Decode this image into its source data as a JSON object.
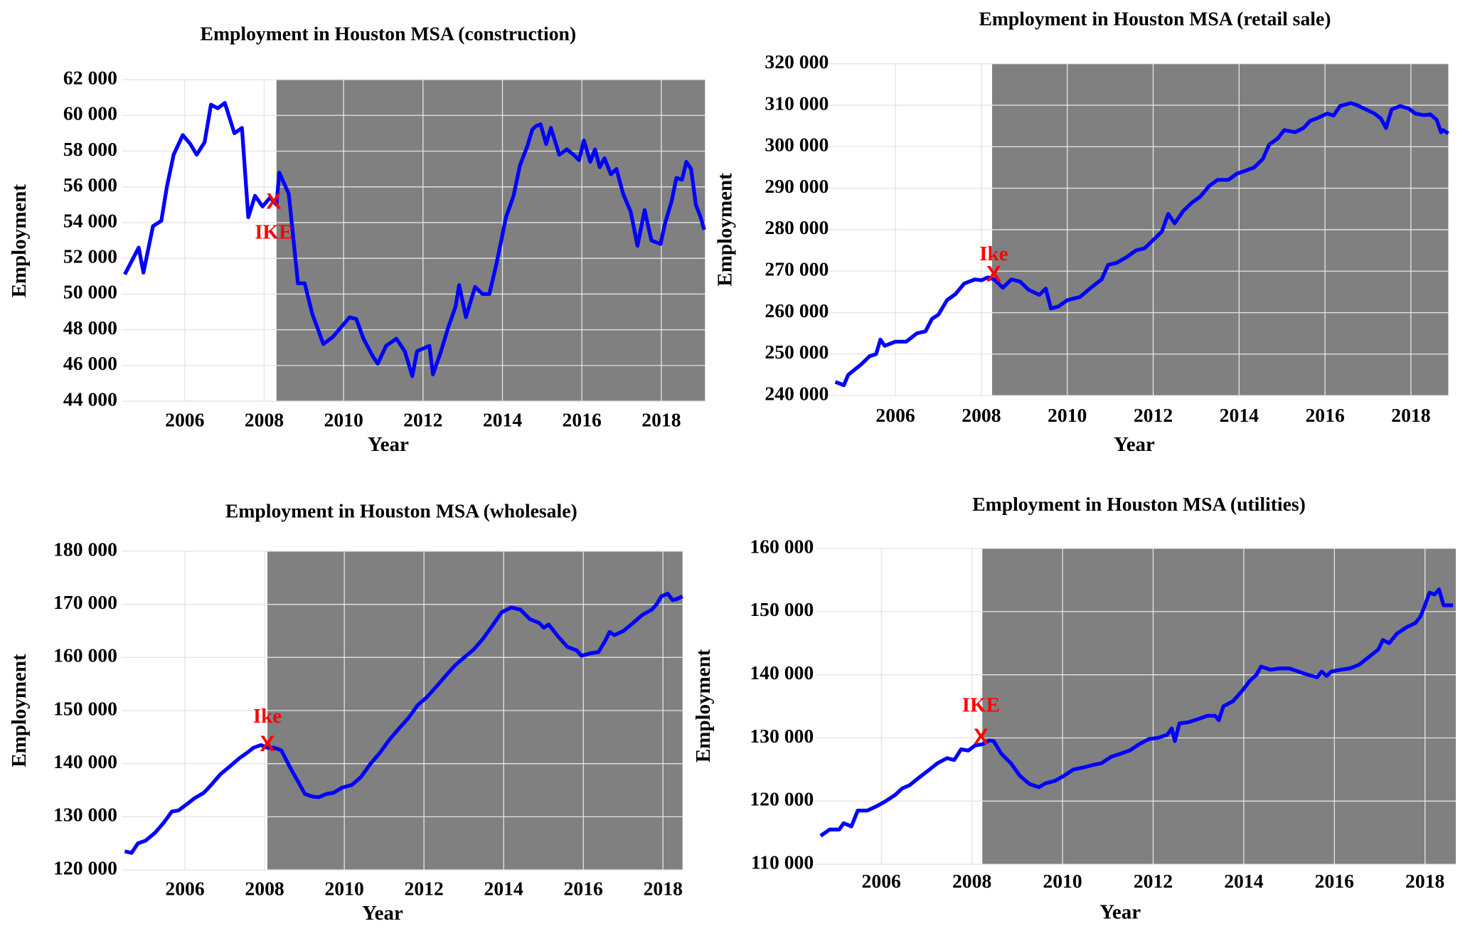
{
  "chart_data": [
    {
      "type": "line",
      "title": "Employment in Houston MSA  (construction)",
      "x_label": "Year",
      "y_label": "Employment",
      "color": "#0000ff",
      "grid": true,
      "shade_color": "#808080",
      "shaded_xrange": [
        2008.31,
        2019.1
      ],
      "xlim": [
        2004.42,
        2019.1
      ],
      "xticks": [
        2006,
        2008,
        2010,
        2012,
        2014,
        2016,
        2018
      ],
      "ylim": [
        44000,
        62000
      ],
      "yticks": [
        {
          "value": 44000,
          "label": "44 000"
        },
        {
          "value": 46000,
          "label": "46 000"
        },
        {
          "value": 48000,
          "label": "48 000"
        },
        {
          "value": 50000,
          "label": "50 000"
        },
        {
          "value": 52000,
          "label": "52 000"
        },
        {
          "value": 54000,
          "label": "54 000"
        },
        {
          "value": 56000,
          "label": "56 000"
        },
        {
          "value": 58000,
          "label": "58 000"
        },
        {
          "value": 60000,
          "label": "60 000"
        },
        {
          "value": 62000,
          "label": "62 000"
        }
      ],
      "annotation": {
        "text": "IKE",
        "marker": "X",
        "color": "#ff0000",
        "x": 2008.24,
        "y": 55100
      },
      "x": [
        2004.49,
        2004.84,
        2004.96,
        2005.2,
        2005.41,
        2005.55,
        2005.72,
        2005.95,
        2006.14,
        2006.3,
        2006.5,
        2006.66,
        2006.83,
        2007.01,
        2007.25,
        2007.44,
        2007.6,
        2007.77,
        2007.96,
        2008.15,
        2008.31,
        2008.38,
        2008.62,
        2008.85,
        2009.02,
        2009.21,
        2009.49,
        2009.73,
        2009.96,
        2010.15,
        2010.32,
        2010.5,
        2010.74,
        2010.86,
        2011.07,
        2011.33,
        2011.54,
        2011.73,
        2011.85,
        2012.16,
        2012.25,
        2012.44,
        2012.63,
        2012.82,
        2012.91,
        2013.08,
        2013.31,
        2013.5,
        2013.67,
        2013.85,
        2014.09,
        2014.28,
        2014.44,
        2014.63,
        2014.75,
        2014.84,
        2014.96,
        2015.1,
        2015.22,
        2015.43,
        2015.62,
        2015.79,
        2015.93,
        2016.05,
        2016.21,
        2016.33,
        2016.45,
        2016.57,
        2016.73,
        2016.87,
        2017.04,
        2017.23,
        2017.4,
        2017.58,
        2017.75,
        2017.98,
        2018.1,
        2018.26,
        2018.38,
        2018.52,
        2018.63,
        2018.75,
        2018.87,
        2018.99,
        2019.08
      ],
      "values": [
        51100,
        52600,
        51200,
        53800,
        54100,
        56000,
        57800,
        58900,
        58400,
        57800,
        58500,
        60600,
        60400,
        60700,
        59000,
        59300,
        54300,
        55500,
        54900,
        55400,
        55000,
        56800,
        55600,
        50600,
        50600,
        48900,
        47200,
        47600,
        48200,
        48700,
        48600,
        47500,
        46500,
        46100,
        47100,
        47500,
        46800,
        45400,
        46800,
        47100,
        45500,
        46700,
        48100,
        49300,
        50500,
        48700,
        50400,
        50000,
        50000,
        51700,
        54300,
        55500,
        57200,
        58300,
        59200,
        59400,
        59500,
        58400,
        59300,
        57800,
        58100,
        57800,
        57500,
        58600,
        57400,
        58100,
        57100,
        57600,
        56700,
        57000,
        55600,
        54600,
        52700,
        54700,
        53000,
        52800,
        54000,
        55200,
        56500,
        56400,
        57400,
        57000,
        55000,
        54300,
        53600
      ]
    },
    {
      "type": "line",
      "title": "Employment in Houston MSA  (retail sale)",
      "x_label": "Year",
      "y_label": "Employment",
      "color": "#0000ff",
      "grid": true,
      "shade_color": "#808080",
      "shaded_xrange": [
        2008.25,
        2018.87
      ],
      "xlim": [
        2004.36,
        2018.87
      ],
      "xticks": [
        2006,
        2008,
        2010,
        2012,
        2014,
        2016,
        2018
      ],
      "ylim": [
        240000,
        320000
      ],
      "yticks": [
        {
          "value": 240000,
          "label": "240 000"
        },
        {
          "value": 250000,
          "label": "250 000"
        },
        {
          "value": 260000,
          "label": "260 000"
        },
        {
          "value": 270000,
          "label": "270 000"
        },
        {
          "value": 280000,
          "label": "280 000"
        },
        {
          "value": 290000,
          "label": "290 000"
        },
        {
          "value": 300000,
          "label": "300 000"
        },
        {
          "value": 310000,
          "label": "310 000"
        },
        {
          "value": 320000,
          "label": "320 000"
        }
      ],
      "annotation": {
        "text": "Ike",
        "marker": "X",
        "color": "#ff0000",
        "x": 2008.29,
        "y": 269000
      },
      "x": [
        2004.6,
        2004.8,
        2004.9,
        2005.2,
        2005.4,
        2005.55,
        2005.65,
        2005.75,
        2006.0,
        2006.25,
        2006.5,
        2006.7,
        2006.85,
        2007.0,
        2007.2,
        2007.4,
        2007.6,
        2007.85,
        2008.0,
        2008.15,
        2008.3,
        2008.5,
        2008.7,
        2008.9,
        2009.1,
        2009.35,
        2009.5,
        2009.62,
        2009.8,
        2010.0,
        2010.3,
        2010.55,
        2010.8,
        2010.95,
        2011.15,
        2011.4,
        2011.6,
        2011.8,
        2012.0,
        2012.2,
        2012.35,
        2012.5,
        2012.7,
        2012.9,
        2013.1,
        2013.3,
        2013.5,
        2013.75,
        2013.95,
        2014.15,
        2014.35,
        2014.55,
        2014.7,
        2014.9,
        2015.05,
        2015.3,
        2015.5,
        2015.65,
        2015.85,
        2016.05,
        2016.2,
        2016.35,
        2016.6,
        2016.75,
        2016.95,
        2017.15,
        2017.3,
        2017.42,
        2017.55,
        2017.75,
        2017.95,
        2018.1,
        2018.3,
        2018.45,
        2018.6,
        2018.7,
        2018.75,
        2018.87
      ],
      "values": [
        243300,
        242500,
        245000,
        247500,
        249500,
        250000,
        253500,
        252000,
        253000,
        253000,
        255000,
        255500,
        258500,
        259500,
        263000,
        264500,
        267000,
        268000,
        267800,
        268500,
        268000,
        266000,
        268000,
        267500,
        265500,
        264300,
        265800,
        261000,
        261500,
        263000,
        263800,
        266000,
        268000,
        271500,
        272000,
        273500,
        275000,
        275500,
        277500,
        279500,
        283800,
        281500,
        284500,
        286500,
        288000,
        290500,
        292000,
        292000,
        293500,
        294200,
        295000,
        297000,
        300500,
        302000,
        304000,
        303500,
        304500,
        306200,
        307000,
        308000,
        307500,
        309800,
        310500,
        310000,
        309000,
        308000,
        306800,
        304500,
        309000,
        309800,
        309200,
        308000,
        307600,
        307800,
        306500,
        303500,
        304000,
        303200
      ]
    },
    {
      "type": "line",
      "title": "Employment in Houston MSA (wholesale)",
      "x_label": "Year",
      "y_label": "Employment",
      "color": "#0000ff",
      "grid": true,
      "shade_color": "#808080",
      "shaded_xrange": [
        2008.07,
        2018.49
      ],
      "xlim": [
        2004.42,
        2018.49
      ],
      "xticks": [
        2006,
        2008,
        2010,
        2012,
        2014,
        2016,
        2018
      ],
      "ylim": [
        120000,
        180000
      ],
      "yticks": [
        {
          "value": 120000,
          "label": "120 000"
        },
        {
          "value": 130000,
          "label": "130 000"
        },
        {
          "value": 140000,
          "label": "140 000"
        },
        {
          "value": 150000,
          "label": "150 000"
        },
        {
          "value": 160000,
          "label": "160 000"
        },
        {
          "value": 170000,
          "label": "170 000"
        },
        {
          "value": 180000,
          "label": "180 000"
        }
      ],
      "annotation": {
        "text": "Ike",
        "marker": "X",
        "color": "#ff0000",
        "x": 2008.07,
        "y": 143500
      },
      "x": [
        2004.49,
        2004.66,
        2004.82,
        2005.01,
        2005.25,
        2005.48,
        2005.67,
        2005.84,
        2006.07,
        2006.24,
        2006.47,
        2006.66,
        2006.89,
        2007.13,
        2007.36,
        2007.55,
        2007.72,
        2007.91,
        2008.07,
        2008.24,
        2008.42,
        2008.66,
        2008.85,
        2009.01,
        2009.2,
        2009.36,
        2009.55,
        2009.72,
        2009.95,
        2010.19,
        2010.42,
        2010.66,
        2010.89,
        2011.13,
        2011.36,
        2011.6,
        2011.84,
        2012.07,
        2012.31,
        2012.54,
        2012.78,
        2013.01,
        2013.25,
        2013.48,
        2013.72,
        2013.95,
        2014.19,
        2014.42,
        2014.66,
        2014.89,
        2015.01,
        2015.13,
        2015.36,
        2015.6,
        2015.84,
        2015.95,
        2016.19,
        2016.38,
        2016.54,
        2016.66,
        2016.78,
        2017.01,
        2017.25,
        2017.48,
        2017.72,
        2017.84,
        2017.96,
        2018.12,
        2018.24,
        2018.35,
        2018.49
      ],
      "values": [
        123500,
        123200,
        125000,
        125500,
        127000,
        129000,
        131000,
        131200,
        132500,
        133500,
        134500,
        136000,
        138000,
        139500,
        141000,
        142000,
        143000,
        143500,
        143000,
        143000,
        142500,
        139000,
        136500,
        134300,
        133800,
        133700,
        134300,
        134500,
        135500,
        136000,
        137500,
        140000,
        142000,
        144500,
        146500,
        148500,
        151000,
        152500,
        154500,
        156500,
        158500,
        160000,
        161500,
        163500,
        166000,
        168500,
        169400,
        169000,
        167200,
        166500,
        165600,
        166200,
        164000,
        162000,
        161300,
        160300,
        160800,
        161000,
        163000,
        164800,
        164200,
        165000,
        166500,
        168000,
        169000,
        170000,
        171500,
        172000,
        170800,
        171000,
        171500
      ]
    },
    {
      "type": "line",
      "title": "Employment in Houston MSA  (utilities)",
      "x_label": "Year",
      "y_label": "Employment",
      "color": "#0000ff",
      "grid": true,
      "shade_color": "#808080",
      "shaded_xrange": [
        2008.23,
        2018.68
      ],
      "xlim": [
        2004.55,
        2018.68
      ],
      "xticks": [
        2006,
        2008,
        2010,
        2012,
        2014,
        2016,
        2018
      ],
      "ylim": [
        110000,
        160000
      ],
      "yticks": [
        {
          "value": 110000,
          "label": "110 000"
        },
        {
          "value": 120000,
          "label": "120 000"
        },
        {
          "value": 130000,
          "label": "130 000"
        },
        {
          "value": 140000,
          "label": "140 000"
        },
        {
          "value": 150000,
          "label": "150 000"
        },
        {
          "value": 160000,
          "label": "160 000"
        }
      ],
      "annotation": {
        "text": "IKE",
        "marker": "X",
        "color": "#ff0000",
        "x": 2008.2,
        "y": 130000
      },
      "x": [
        2004.66,
        2004.86,
        2005.07,
        2005.17,
        2005.34,
        2005.48,
        2005.69,
        2005.9,
        2006.1,
        2006.31,
        2006.46,
        2006.62,
        2006.83,
        2007.03,
        2007.24,
        2007.45,
        2007.61,
        2007.76,
        2007.92,
        2008.07,
        2008.23,
        2008.38,
        2008.48,
        2008.65,
        2008.86,
        2009.06,
        2009.27,
        2009.48,
        2009.62,
        2009.83,
        2010.03,
        2010.24,
        2010.45,
        2010.66,
        2010.86,
        2011.07,
        2011.28,
        2011.48,
        2011.69,
        2011.9,
        2012.1,
        2012.31,
        2012.41,
        2012.48,
        2012.58,
        2012.79,
        2013.0,
        2013.2,
        2013.37,
        2013.45,
        2013.55,
        2013.76,
        2013.97,
        2014.13,
        2014.28,
        2014.38,
        2014.59,
        2014.79,
        2015.0,
        2015.21,
        2015.41,
        2015.62,
        2015.72,
        2015.83,
        2015.93,
        2016.14,
        2016.34,
        2016.55,
        2016.76,
        2016.97,
        2017.07,
        2017.21,
        2017.38,
        2017.59,
        2017.79,
        2017.9,
        2018.0,
        2018.1,
        2018.21,
        2018.31,
        2018.41,
        2018.62
      ],
      "values": [
        114500,
        115500,
        115500,
        116500,
        116000,
        118500,
        118500,
        119200,
        120000,
        121000,
        122000,
        122500,
        123700,
        124800,
        126000,
        126800,
        126500,
        128200,
        128000,
        128800,
        129000,
        129600,
        129500,
        127500,
        126000,
        124000,
        122700,
        122200,
        122800,
        123200,
        124000,
        125000,
        125300,
        125700,
        126000,
        127000,
        127500,
        128000,
        129000,
        129800,
        130000,
        130500,
        131500,
        129500,
        132300,
        132500,
        133000,
        133500,
        133500,
        132800,
        135000,
        135800,
        137500,
        139000,
        140000,
        141300,
        140800,
        141000,
        141000,
        140500,
        140000,
        139600,
        140500,
        139800,
        140500,
        140800,
        141000,
        141600,
        142800,
        144000,
        145500,
        145000,
        146500,
        147500,
        148200,
        149200,
        151000,
        153000,
        152700,
        153500,
        151000,
        151000
      ]
    }
  ]
}
